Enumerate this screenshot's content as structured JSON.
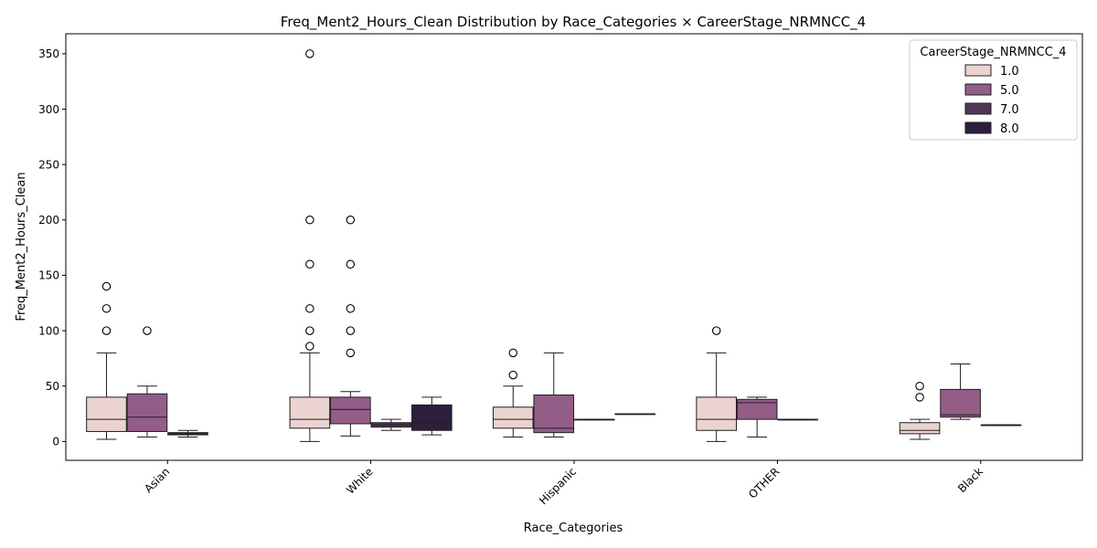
{
  "chart_data": {
    "type": "box",
    "title": "Freq_Ment2_Hours_Clean Distribution by Race_Categories × CareerStage_NRMNCC_4",
    "xlabel": "Race_Categories",
    "ylabel": "Freq_Ment2_Hours_Clean",
    "ylim": [
      -17,
      368
    ],
    "yticks": [
      0,
      50,
      100,
      150,
      200,
      250,
      300,
      350
    ],
    "categories": [
      "Asian",
      "White",
      "Hispanic",
      "OTHER",
      "Black"
    ],
    "legend": {
      "title": "CareerStage_NRMNCC_4",
      "placement": "top-right",
      "entries": [
        {
          "label": "1.0",
          "color": "#ebd3d0"
        },
        {
          "label": "5.0",
          "color": "#925e87"
        },
        {
          "label": "7.0",
          "color": "#52365a"
        },
        {
          "label": "8.0",
          "color": "#2d1e3e"
        }
      ]
    },
    "series": [
      {
        "name": "1.0",
        "color": "#ebd3d0",
        "boxes": [
          {
            "whisker_low": 2,
            "q1": 9,
            "median": 20,
            "q3": 40,
            "whisker_high": 80,
            "outliers": [
              100,
              120,
              140
            ]
          },
          {
            "whisker_low": 0,
            "q1": 12,
            "median": 20,
            "q3": 40,
            "whisker_high": 80,
            "outliers": [
              86,
              100,
              120,
              160,
              200,
              350
            ]
          },
          {
            "whisker_low": 4,
            "q1": 12,
            "median": 20,
            "q3": 31,
            "whisker_high": 50,
            "outliers": [
              60,
              80
            ]
          },
          {
            "whisker_low": 0,
            "q1": 10,
            "median": 20,
            "q3": 40,
            "whisker_high": 80,
            "outliers": [
              100
            ]
          },
          {
            "whisker_low": 2,
            "q1": 7,
            "median": 10,
            "q3": 17,
            "whisker_high": 20,
            "outliers": [
              40,
              50
            ]
          }
        ]
      },
      {
        "name": "5.0",
        "color": "#925e87",
        "boxes": [
          {
            "whisker_low": 4,
            "q1": 9,
            "median": 22,
            "q3": 43,
            "whisker_high": 50,
            "outliers": [
              100
            ]
          },
          {
            "whisker_low": 5,
            "q1": 16,
            "median": 29,
            "q3": 40,
            "whisker_high": 45,
            "outliers": [
              80,
              100,
              120,
              160,
              200
            ]
          },
          {
            "whisker_low": 4,
            "q1": 8,
            "median": 12,
            "q3": 42,
            "whisker_high": 80,
            "outliers": []
          },
          {
            "whisker_low": 4,
            "q1": 20,
            "median": 35,
            "q3": 38,
            "whisker_high": 40,
            "outliers": []
          },
          {
            "whisker_low": 20,
            "q1": 22,
            "median": 24,
            "q3": 47,
            "whisker_high": 70,
            "outliers": []
          }
        ]
      },
      {
        "name": "7.0",
        "color": "#52365a",
        "boxes": [
          {
            "whisker_low": 4,
            "q1": 6,
            "median": 7,
            "q3": 8,
            "whisker_high": 10,
            "outliers": []
          },
          {
            "whisker_low": 10,
            "q1": 13,
            "median": 15,
            "q3": 17,
            "whisker_high": 20,
            "outliers": []
          },
          {
            "whisker_low": 20,
            "q1": 20,
            "median": 20,
            "q3": 20,
            "whisker_high": 20,
            "outliers": []
          },
          {
            "whisker_low": 20,
            "q1": 20,
            "median": 20,
            "q3": 20,
            "whisker_high": 20,
            "outliers": []
          },
          {
            "whisker_low": 15,
            "q1": 15,
            "median": 15,
            "q3": 15,
            "whisker_high": 15,
            "outliers": []
          }
        ]
      },
      {
        "name": "8.0",
        "color": "#2d1e3e",
        "boxes": [
          null,
          {
            "whisker_low": 6,
            "q1": 10,
            "median": 17,
            "q3": 33,
            "whisker_high": 40,
            "outliers": []
          },
          {
            "whisker_low": 25,
            "q1": 25,
            "median": 25,
            "q3": 25,
            "whisker_high": 25,
            "outliers": []
          },
          null,
          null
        ]
      }
    ],
    "grid": false
  }
}
